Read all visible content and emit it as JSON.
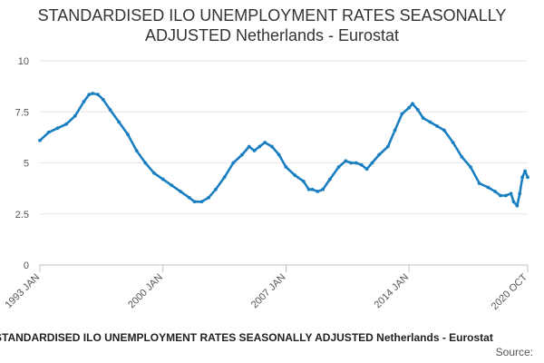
{
  "title_lines": [
    "STANDARDISED ILO UNEMPLOYMENT RATES SEASONALLY",
    "ADJUSTED Netherlands - Eurostat"
  ],
  "footer": {
    "title": "STANDARDISED ILO UNEMPLOYMENT RATES SEASONALLY ADJUSTED Netherlands - Eurostat",
    "source": "Source:"
  },
  "colors": {
    "line": "#1a7fc1",
    "grid": "#e6e6e6",
    "axis": "#c0c0c0"
  },
  "chart_data": {
    "type": "line",
    "title": "STANDARDISED ILO UNEMPLOYMENT RATES SEASONALLY ADJUSTED Netherlands - Eurostat",
    "xlabel": "",
    "ylabel": "",
    "x_range": [
      1993.0,
      2020.75
    ],
    "ylim": [
      0,
      10
    ],
    "y_ticks": [
      0,
      2.5,
      5,
      7.5,
      10
    ],
    "y_tick_labels": [
      "0",
      "2.5",
      "5",
      "7.5",
      "10"
    ],
    "x_ticks": [
      1993.0,
      2000.0,
      2007.0,
      2014.0,
      2020.75
    ],
    "x_tick_labels": [
      "1993 JAN",
      "2000 JAN",
      "2007 JAN",
      "2014 JAN",
      "2020 OCT"
    ],
    "grid": true,
    "series": [
      {
        "name": "Netherlands",
        "points": [
          [
            1993.0,
            6.1
          ],
          [
            1993.5,
            6.5
          ],
          [
            1994.0,
            6.7
          ],
          [
            1994.5,
            6.9
          ],
          [
            1995.0,
            7.3
          ],
          [
            1995.5,
            8.0
          ],
          [
            1995.8,
            8.35
          ],
          [
            1996.0,
            8.4
          ],
          [
            1996.3,
            8.35
          ],
          [
            1996.6,
            8.1
          ],
          [
            1997.0,
            7.6
          ],
          [
            1997.5,
            7.0
          ],
          [
            1998.0,
            6.4
          ],
          [
            1998.5,
            5.6
          ],
          [
            1999.0,
            5.0
          ],
          [
            1999.5,
            4.5
          ],
          [
            2000.0,
            4.2
          ],
          [
            2000.5,
            3.9
          ],
          [
            2001.0,
            3.6
          ],
          [
            2001.5,
            3.3
          ],
          [
            2001.8,
            3.1
          ],
          [
            2002.2,
            3.1
          ],
          [
            2002.6,
            3.3
          ],
          [
            2003.0,
            3.7
          ],
          [
            2003.5,
            4.3
          ],
          [
            2004.0,
            5.0
          ],
          [
            2004.5,
            5.4
          ],
          [
            2004.9,
            5.8
          ],
          [
            2005.2,
            5.6
          ],
          [
            2005.5,
            5.8
          ],
          [
            2005.8,
            6.0
          ],
          [
            2006.2,
            5.8
          ],
          [
            2006.6,
            5.4
          ],
          [
            2007.0,
            4.8
          ],
          [
            2007.5,
            4.4
          ],
          [
            2008.0,
            4.1
          ],
          [
            2008.3,
            3.7
          ],
          [
            2008.5,
            3.7
          ],
          [
            2008.8,
            3.6
          ],
          [
            2009.1,
            3.7
          ],
          [
            2009.5,
            4.2
          ],
          [
            2010.0,
            4.8
          ],
          [
            2010.4,
            5.1
          ],
          [
            2010.7,
            5.0
          ],
          [
            2011.0,
            5.0
          ],
          [
            2011.3,
            4.9
          ],
          [
            2011.6,
            4.7
          ],
          [
            2011.9,
            5.0
          ],
          [
            2012.3,
            5.4
          ],
          [
            2012.8,
            5.8
          ],
          [
            2013.2,
            6.6
          ],
          [
            2013.6,
            7.4
          ],
          [
            2014.0,
            7.7
          ],
          [
            2014.2,
            7.9
          ],
          [
            2014.5,
            7.6
          ],
          [
            2014.8,
            7.2
          ],
          [
            2015.2,
            7.0
          ],
          [
            2015.6,
            6.8
          ],
          [
            2016.0,
            6.6
          ],
          [
            2016.5,
            6.0
          ],
          [
            2017.0,
            5.3
          ],
          [
            2017.5,
            4.8
          ],
          [
            2018.0,
            4.0
          ],
          [
            2018.5,
            3.8
          ],
          [
            2018.9,
            3.6
          ],
          [
            2019.2,
            3.4
          ],
          [
            2019.5,
            3.4
          ],
          [
            2019.8,
            3.5
          ],
          [
            2019.95,
            3.1
          ],
          [
            2020.15,
            2.9
          ],
          [
            2020.3,
            3.5
          ],
          [
            2020.45,
            4.3
          ],
          [
            2020.6,
            4.6
          ],
          [
            2020.75,
            4.3
          ]
        ]
      }
    ]
  }
}
